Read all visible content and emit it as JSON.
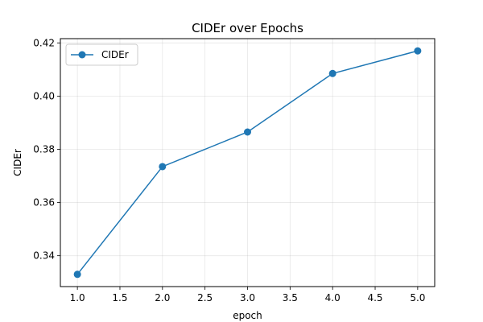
{
  "chart_data": {
    "type": "line",
    "title": "CIDEr over Epochs",
    "xlabel": "epoch",
    "ylabel": "CIDEr",
    "xlim": [
      0.8,
      5.2
    ],
    "ylim": [
      0.3284,
      0.4216
    ],
    "x_ticks": [
      1.0,
      1.5,
      2.0,
      2.5,
      3.0,
      3.5,
      4.0,
      4.5,
      5.0
    ],
    "x_tick_labels": [
      "1.0",
      "1.5",
      "2.0",
      "2.5",
      "3.0",
      "3.5",
      "4.0",
      "4.5",
      "5.0"
    ],
    "y_ticks": [
      0.34,
      0.36,
      0.38,
      0.4,
      0.42
    ],
    "y_tick_labels": [
      "0.34",
      "0.36",
      "0.38",
      "0.40",
      "0.42"
    ],
    "grid": true,
    "legend_position": "top-left",
    "series": [
      {
        "name": "CIDEr",
        "color": "#1f77b4",
        "marker": "circle",
        "x": [
          1.0,
          2.0,
          3.0,
          4.0,
          5.0
        ],
        "y": [
          0.333,
          0.3735,
          0.3865,
          0.4085,
          0.417
        ]
      }
    ]
  }
}
